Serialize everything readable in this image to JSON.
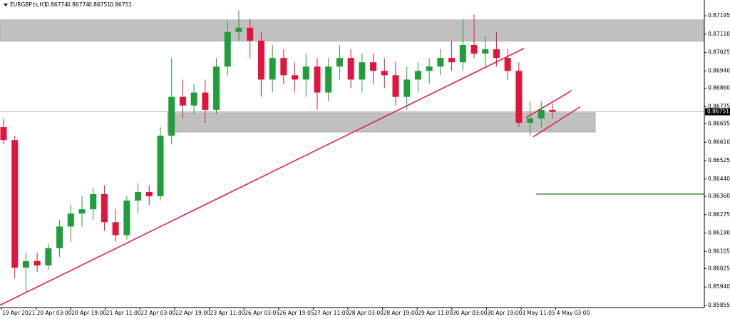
{
  "chart_data": {
    "type": "candlestick",
    "symbol": "EURGBP.ts,H1",
    "header_values": [
      0.86774,
      0.86774,
      0.86751,
      0.86751
    ],
    "last_price": 0.86751,
    "open": [
      0.8668,
      0.8662,
      0.8603,
      0.8606,
      0.8604,
      0.8612,
      0.8622,
      0.8628,
      0.863,
      0.8637,
      0.8624,
      0.8618,
      0.8634,
      0.8638,
      0.8636,
      0.8664,
      0.8682,
      0.8678,
      0.8684,
      0.8676,
      0.8696,
      0.8712,
      0.8714,
      0.8708,
      0.869,
      0.87,
      0.8692,
      0.869,
      0.8696,
      0.8684,
      0.8696,
      0.87,
      0.869,
      0.8698,
      0.8694,
      0.8692,
      0.8682,
      0.869,
      0.8694,
      0.8696,
      0.87,
      0.8698,
      0.8706,
      0.8702,
      0.8704,
      0.87,
      0.8694,
      0.867,
      0.8672,
      0.8676
    ],
    "high": [
      0.8672,
      0.8664,
      0.861,
      0.861,
      0.8614,
      0.8625,
      0.8632,
      0.8636,
      0.864,
      0.8641,
      0.863,
      0.8636,
      0.8642,
      0.8641,
      0.8668,
      0.87,
      0.869,
      0.8688,
      0.869,
      0.87,
      0.8717,
      0.8722,
      0.8718,
      0.8712,
      0.8706,
      0.8704,
      0.8698,
      0.8702,
      0.87,
      0.87,
      0.8706,
      0.8704,
      0.8702,
      0.8702,
      0.87,
      0.8698,
      0.8696,
      0.8698,
      0.87,
      0.8704,
      0.8708,
      0.8718,
      0.872,
      0.871,
      0.8712,
      0.8704,
      0.8698,
      0.868,
      0.868,
      0.8679
    ],
    "low": [
      0.866,
      0.8598,
      0.8592,
      0.8601,
      0.8602,
      0.8608,
      0.8615,
      0.8622,
      0.8625,
      0.862,
      0.8615,
      0.8616,
      0.8628,
      0.8632,
      0.8634,
      0.866,
      0.8672,
      0.8674,
      0.867,
      0.8674,
      0.8692,
      0.8708,
      0.87,
      0.8682,
      0.8684,
      0.8688,
      0.8684,
      0.8682,
      0.8676,
      0.868,
      0.869,
      0.8686,
      0.8684,
      0.8688,
      0.8686,
      0.8678,
      0.8676,
      0.8684,
      0.8688,
      0.8692,
      0.8694,
      0.8694,
      0.87,
      0.8696,
      0.8696,
      0.869,
      0.8668,
      0.8664,
      0.8668,
      0.8672
    ],
    "close": [
      0.8662,
      0.8603,
      0.8606,
      0.8604,
      0.8612,
      0.8622,
      0.8628,
      0.863,
      0.8637,
      0.8624,
      0.8618,
      0.8634,
      0.8638,
      0.8636,
      0.8664,
      0.8682,
      0.8678,
      0.8684,
      0.8676,
      0.8696,
      0.8712,
      0.8714,
      0.8708,
      0.869,
      0.87,
      0.8692,
      0.869,
      0.8696,
      0.8684,
      0.8696,
      0.87,
      0.869,
      0.8698,
      0.8694,
      0.8692,
      0.8682,
      0.869,
      0.8694,
      0.8696,
      0.87,
      0.8698,
      0.8706,
      0.8702,
      0.8704,
      0.87,
      0.8694,
      0.867,
      0.8672,
      0.8676,
      0.86751
    ],
    "up_color": "#1f9e3a",
    "down_color": "#e0143c",
    "xticks": [
      "19 Apr 2021",
      "20 Apr 03:00",
      "20 Apr 19:00",
      "21 Apr 11:00",
      "22 Apr 03:00",
      "22 Apr 19:00",
      "23 Apr 11:00",
      "26 Apr 03:05",
      "26 Apr 19:05",
      "27 Apr 11:00",
      "28 Apr 03:00",
      "28 Apr 19:00",
      "29 Apr 11:00",
      "30 Apr 03:00",
      "30 Apr 19:00",
      "3 May 11:05",
      "4 May 03:00"
    ],
    "ylim": [
      0.85845,
      0.87268
    ],
    "yticks": [
      0.87195,
      {
        "value": 0.8711,
        "label": "0.87110"
      },
      0.87025,
      {
        "value": 0.8694,
        "label": "0.86940"
      },
      {
        "value": 0.8686,
        "label": "0.86860"
      },
      0.86775,
      0.86695,
      {
        "value": 0.8661,
        "label": "0.86610"
      },
      0.86525,
      {
        "value": 0.8644,
        "label": "0.86440"
      },
      {
        "value": 0.8636,
        "label": "0.86360"
      },
      0.86275,
      {
        "value": 0.8619,
        "label": "0.86190"
      },
      0.86105,
      0.86025,
      {
        "value": 0.8594,
        "label": "0.85940"
      },
      0.85855
    ],
    "zones": [
      {
        "low": 0.87077,
        "high": 0.87176,
        "color": "#c0c0c0"
      },
      {
        "low": 0.86657,
        "high": 0.86747,
        "color": "#c0c0c0"
      }
    ],
    "trendlines": [
      {
        "from": 0.85856,
        "to": 0.87044,
        "color": "#e0234e"
      },
      {
        "from": 0.86724,
        "to": 0.86849,
        "color": "#e0234e"
      },
      {
        "from": 0.86635,
        "to": 0.86774,
        "color": "#e0234e"
      }
    ],
    "hlines": [
      {
        "value": 0.8637,
        "color": "#2e8b2e"
      }
    ]
  }
}
